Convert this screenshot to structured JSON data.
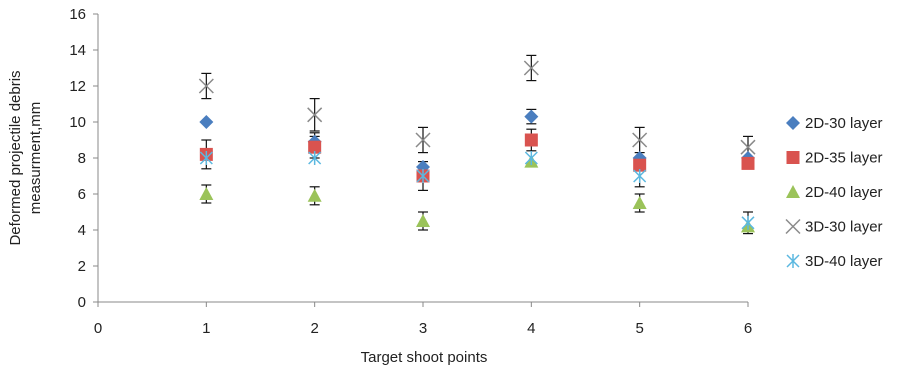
{
  "chart_data": {
    "type": "scatter",
    "title": "",
    "xlabel": "Target shoot points",
    "ylabel_lines": [
      "Deformed projectile debris",
      "measurment,mm"
    ],
    "xlim": [
      0,
      6
    ],
    "ylim": [
      0,
      16
    ],
    "xticks": [
      "0",
      "1",
      "2",
      "3",
      "4",
      "5",
      "6"
    ],
    "yticks": [
      "0",
      "2",
      "4",
      "6",
      "8",
      "10",
      "12",
      "14",
      "16"
    ],
    "grid": false,
    "legend_position": "right",
    "series": [
      {
        "name": "2D-30 layer",
        "marker": "diamond",
        "color": "#4a7ebf",
        "x": [
          1,
          2,
          3,
          4,
          5,
          6
        ],
        "y": [
          10.0,
          8.9,
          7.5,
          10.3,
          8.0,
          8.0
        ],
        "err": [
          0,
          0.5,
          0,
          0.4,
          0,
          0
        ]
      },
      {
        "name": "2D-35 layer",
        "marker": "square",
        "color": "#d9534f",
        "x": [
          1,
          2,
          3,
          4,
          5,
          6
        ],
        "y": [
          8.2,
          8.6,
          7.0,
          9.0,
          7.6,
          7.7
        ],
        "err": [
          0.8,
          0.6,
          0.8,
          0.6,
          0,
          0
        ]
      },
      {
        "name": "2D-40 layer",
        "marker": "triangle",
        "color": "#9bc35a",
        "x": [
          1,
          2,
          3,
          4,
          5,
          6
        ],
        "y": [
          6.0,
          5.9,
          4.5,
          7.8,
          5.5,
          4.2
        ],
        "err": [
          0.5,
          0.5,
          0.5,
          0,
          0.5,
          0
        ]
      },
      {
        "name": "3D-30 layer",
        "marker": "x",
        "color": "#8a8a8a",
        "x": [
          1,
          2,
          3,
          4,
          5,
          6
        ],
        "y": [
          12.0,
          10.4,
          9.0,
          13.0,
          9.0,
          8.6
        ],
        "err": [
          0.7,
          0.9,
          0.7,
          0.7,
          0.7,
          0.6
        ]
      },
      {
        "name": "3D-40 layer",
        "marker": "star",
        "color": "#5bb8e0",
        "x": [
          1,
          2,
          3,
          4,
          5,
          6
        ],
        "y": [
          8.0,
          8.0,
          7.0,
          8.0,
          7.0,
          4.4
        ],
        "err": [
          0,
          0,
          0,
          0,
          0.6,
          0.6
        ]
      }
    ]
  }
}
